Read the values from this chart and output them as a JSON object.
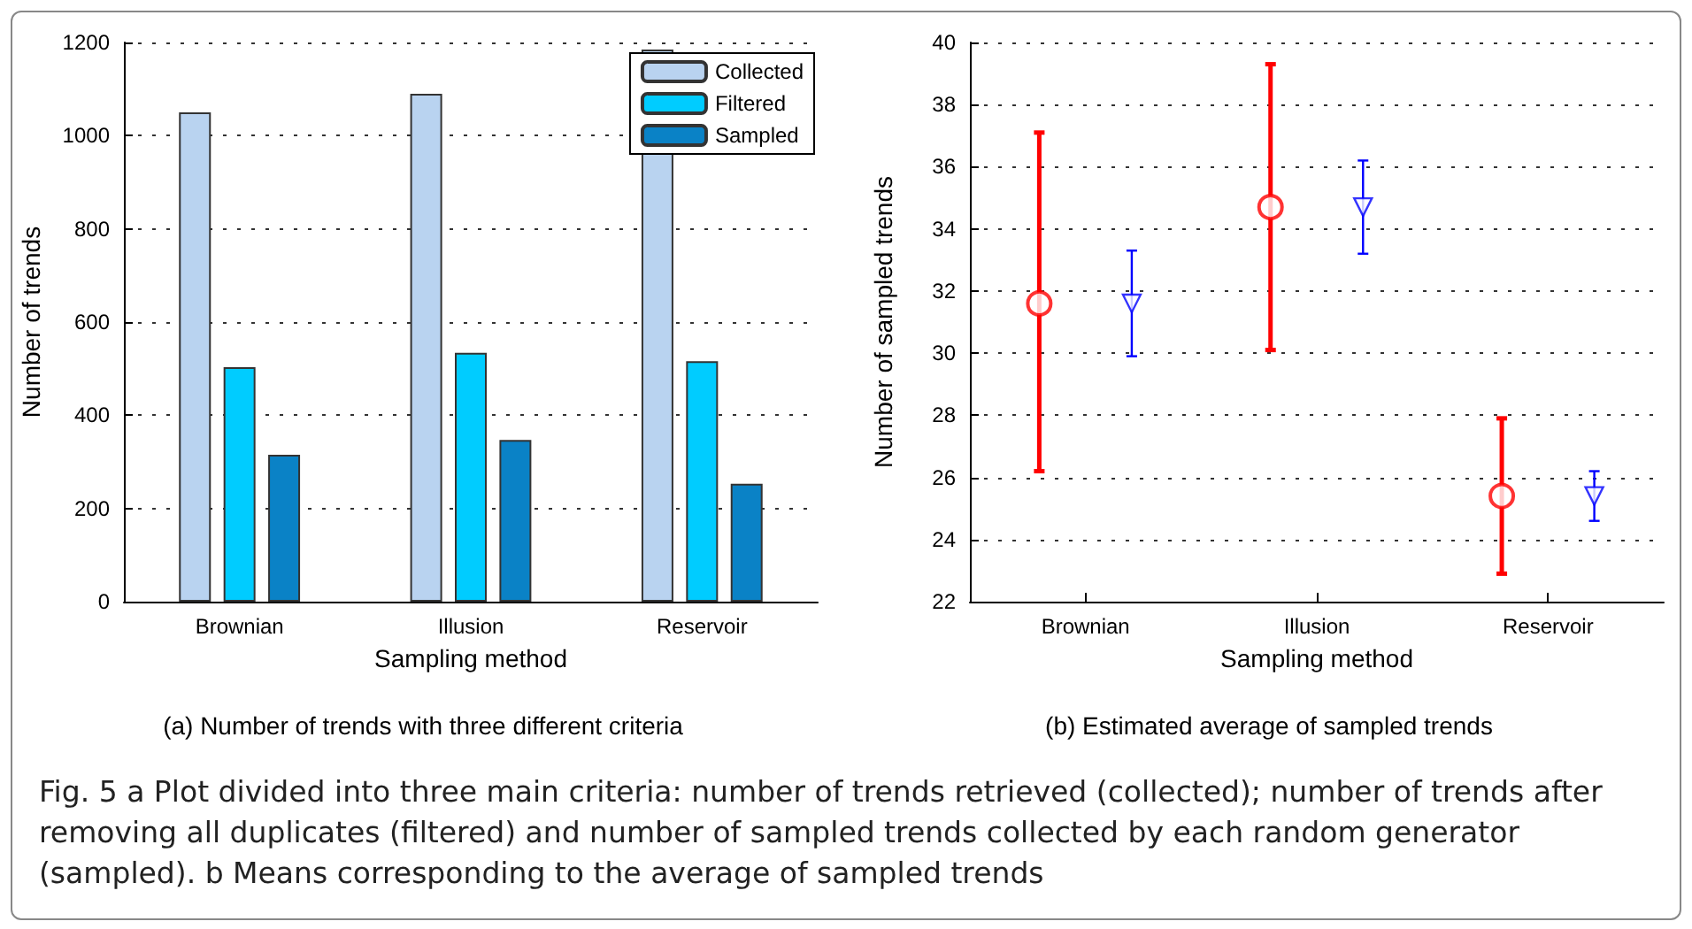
{
  "chart_data": [
    {
      "type": "bar",
      "title": "(a) Number of trends with three different criteria",
      "xlabel": "Sampling method",
      "ylabel": "Number of trends",
      "categories": [
        "Brownian",
        "Illusion",
        "Reservoir"
      ],
      "series": [
        {
          "name": "Collected",
          "color": "#b9d3f0",
          "values": [
            1050,
            1090,
            1185
          ]
        },
        {
          "name": "Filtered",
          "color": "#00ccff",
          "values": [
            503,
            534,
            516
          ]
        },
        {
          "name": "Sampled",
          "color": "#0a82c6",
          "values": [
            315,
            347,
            253
          ]
        }
      ],
      "ylim": [
        0,
        1200
      ],
      "yticks": [
        0,
        200,
        400,
        600,
        800,
        1000,
        1200
      ],
      "grid": "y",
      "legend": "top right",
      "annotations": [
        "Fig. 5 a Plot divided into three main criteria: number of trends retrieved (collected); number of trends after removing all duplicates (filtered) and number of sampled trends collected by each random generator (sampled). b Means corresponding to the average of sampled trends"
      ]
    },
    {
      "type": "scatter",
      "title": "(b) Estimated average of sampled trends",
      "xlabel": "Sampling method",
      "ylabel": "Number of sampled trends",
      "categories": [
        "Brownian",
        "Illusion",
        "Reservoir"
      ],
      "series": [
        {
          "color": "#ff0000",
          "marker": "circle",
          "values": [
            31.6,
            34.7,
            25.4
          ],
          "errors": [
            [
              26.2,
              37.1
            ],
            [
              30.1,
              39.3
            ],
            [
              22.9,
              27.9
            ]
          ]
        },
        {
          "color": "#0000ff",
          "marker": "triangle",
          "values": [
            31.6,
            34.7,
            25.4
          ],
          "errors": [
            [
              29.9,
              33.3
            ],
            [
              33.2,
              36.2
            ],
            [
              24.6,
              26.2
            ]
          ]
        }
      ],
      "ylim": [
        22,
        40
      ],
      "yticks": [
        22,
        24,
        26,
        28,
        30,
        32,
        34,
        36,
        38,
        40
      ],
      "grid": "y",
      "legend": false
    }
  ]
}
